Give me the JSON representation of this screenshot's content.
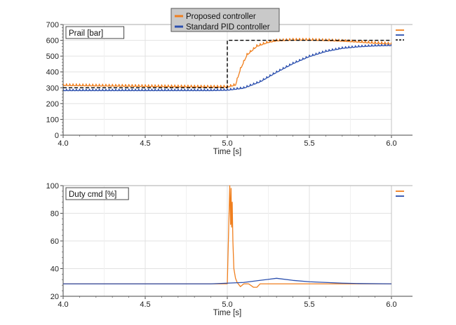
{
  "chart_data": [
    {
      "type": "line",
      "box_label": "Prail [bar]",
      "xlabel": "Time [s]",
      "xlim": [
        4.0,
        6.0
      ],
      "ylim": [
        0,
        700
      ],
      "x_ticks": [
        "4.0",
        "4.5",
        "5.0",
        "5.5",
        "6.0"
      ],
      "y_ticks": [
        "0",
        "100",
        "200",
        "300",
        "400",
        "500",
        "600",
        "700"
      ],
      "grid": true,
      "legend_position": "top-center",
      "series": [
        {
          "name": "Proposed controller",
          "color": "#f07f1e",
          "x": [
            4.0,
            4.5,
            4.9,
            5.0,
            5.05,
            5.08,
            5.12,
            5.18,
            5.25,
            5.3,
            5.4,
            5.5,
            5.6,
            5.7,
            5.8,
            5.9,
            6.0
          ],
          "y": [
            318,
            312,
            308,
            308,
            320,
            420,
            510,
            565,
            590,
            600,
            605,
            605,
            602,
            598,
            592,
            585,
            580
          ],
          "ripple": 12
        },
        {
          "name": "Standard PID controller",
          "color": "#2b4fae",
          "x": [
            4.0,
            4.5,
            4.9,
            5.0,
            5.1,
            5.2,
            5.3,
            5.4,
            5.5,
            5.6,
            5.7,
            5.8,
            5.9,
            6.0
          ],
          "y": [
            285,
            285,
            285,
            287,
            300,
            340,
            400,
            455,
            500,
            532,
            552,
            562,
            568,
            570
          ],
          "ripple": 10
        },
        {
          "name": "",
          "color": "#000000",
          "dashed": true,
          "x": [
            4.0,
            5.0,
            5.0,
            6.0
          ],
          "y": [
            300,
            300,
            600,
            600
          ]
        }
      ]
    },
    {
      "type": "line",
      "box_label": "Duty cmd [%]",
      "xlabel": "Time [s]",
      "xlim": [
        4.0,
        6.0
      ],
      "ylim": [
        20,
        100
      ],
      "x_ticks": [
        "4.0",
        "4.5",
        "5.0",
        "5.5",
        "6.0"
      ],
      "y_ticks": [
        "20",
        "40",
        "60",
        "80",
        "100"
      ],
      "grid": true,
      "series": [
        {
          "name": "Proposed controller",
          "color": "#f07f1e",
          "x": [
            4.0,
            5.0,
            5.015,
            5.02,
            5.023,
            5.026,
            5.03,
            5.034,
            5.04,
            5.05,
            5.06,
            5.08,
            5.1,
            5.13,
            5.16,
            5.18,
            5.2,
            5.3,
            5.5,
            6.0
          ],
          "y": [
            29,
            29,
            100,
            72,
            98,
            70,
            88,
            60,
            40,
            33,
            30,
            27,
            29,
            29,
            26.5,
            26.5,
            29,
            29,
            29,
            29
          ]
        },
        {
          "name": "Standard PID controller",
          "color": "#2b4fae",
          "x": [
            4.0,
            4.9,
            5.0,
            5.1,
            5.2,
            5.3,
            5.4,
            5.5,
            5.6,
            5.7,
            5.8,
            6.0
          ],
          "y": [
            29,
            29,
            29.5,
            30,
            31.5,
            33,
            31.5,
            30.5,
            30,
            29.5,
            29.2,
            29
          ]
        }
      ]
    }
  ]
}
